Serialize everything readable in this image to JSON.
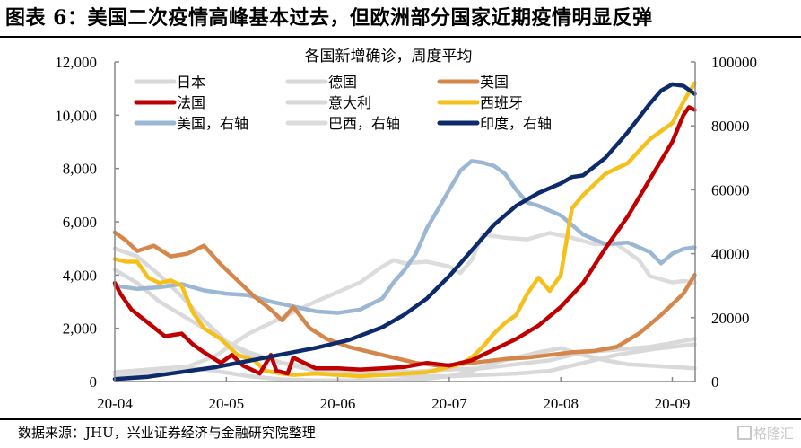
{
  "header": {
    "title": "图表 6：美国二次疫情高峰基本过去，但欧洲部分国家近期疫情明显反弹"
  },
  "footer": {
    "source": "数据来源：JHU，兴业证券经济与金融研究院整理",
    "watermark": "格隆汇"
  },
  "chart_data": {
    "type": "line",
    "title": "各国新增确诊，周度平均",
    "xlabel": "",
    "ylabel": "",
    "x_unit": "months since 2020-04-01",
    "x_ticks": [
      "20-04",
      "20-05",
      "20-06",
      "20-07",
      "20-08",
      "20-09"
    ],
    "xlim": [
      0,
      5.2
    ],
    "ylim_left": [
      0,
      12000
    ],
    "ylim_right": [
      0,
      100000
    ],
    "y_ticks_left": [
      "0",
      "2,000",
      "4,000",
      "6,000",
      "8,000",
      "10,000",
      "12,000"
    ],
    "y_ticks_right": [
      "0",
      "20000",
      "40000",
      "60000",
      "80000",
      "100000"
    ],
    "grid": false,
    "legend_position": "top-left",
    "series": [
      {
        "name": "日本",
        "axis": "left",
        "color": "#d9d9d9",
        "x": [
          0,
          0.3,
          0.6,
          0.9,
          1.2,
          1.5,
          1.8,
          2.1,
          2.4,
          2.7,
          3.0,
          3.2,
          3.4,
          3.6,
          3.8,
          4.0,
          4.2,
          4.4,
          4.6,
          4.8,
          5.0,
          5.2
        ],
        "values": [
          350,
          450,
          550,
          400,
          200,
          80,
          40,
          40,
          50,
          60,
          200,
          400,
          700,
          900,
          1100,
          1250,
          1000,
          800,
          650,
          600,
          550,
          500
        ]
      },
      {
        "name": "德国",
        "axis": "left",
        "color": "#d9d9d9",
        "x": [
          0,
          0.2,
          0.4,
          0.6,
          0.8,
          1.0,
          1.2,
          1.5,
          1.8,
          2.1,
          2.4,
          2.7,
          3.0,
          3.3,
          3.6,
          3.9,
          4.2,
          4.5,
          4.8,
          5.0,
          5.2
        ],
        "values": [
          5000,
          4700,
          4000,
          3200,
          2300,
          1500,
          1000,
          700,
          500,
          400,
          350,
          380,
          450,
          500,
          650,
          800,
          1100,
          1200,
          1300,
          1450,
          1600
        ]
      },
      {
        "name": "英国",
        "axis": "left",
        "color": "#d5864a",
        "x": [
          0,
          0.1,
          0.2,
          0.35,
          0.5,
          0.65,
          0.8,
          0.95,
          1.1,
          1.25,
          1.4,
          1.5,
          1.6,
          1.75,
          1.9,
          2.1,
          2.3,
          2.5,
          2.7,
          2.9,
          3.1,
          3.3,
          3.5,
          3.7,
          3.9,
          4.1,
          4.3,
          4.5,
          4.7,
          4.9,
          5.1,
          5.2
        ],
        "values": [
          5600,
          5300,
          4900,
          5100,
          4700,
          4800,
          5100,
          4400,
          3800,
          3200,
          2700,
          2300,
          2800,
          2000,
          1600,
          1300,
          1100,
          900,
          700,
          600,
          650,
          750,
          850,
          900,
          1000,
          1100,
          1150,
          1300,
          1800,
          2500,
          3300,
          4000
        ]
      },
      {
        "name": "法国",
        "axis": "left",
        "color": "#c00000",
        "x": [
          0,
          0.05,
          0.15,
          0.3,
          0.45,
          0.6,
          0.7,
          0.8,
          0.95,
          1.05,
          1.15,
          1.25,
          1.3,
          1.4,
          1.45,
          1.55,
          1.6,
          1.8,
          2.0,
          2.2,
          2.4,
          2.6,
          2.8,
          3.0,
          3.2,
          3.3,
          3.4,
          3.6,
          3.8,
          4.0,
          4.2,
          4.4,
          4.6,
          4.8,
          5.0,
          5.1,
          5.15,
          5.2
        ],
        "values": [
          3700,
          3300,
          2700,
          2200,
          1700,
          1800,
          1400,
          1100,
          700,
          1000,
          600,
          400,
          300,
          1000,
          400,
          300,
          900,
          500,
          500,
          450,
          500,
          550,
          700,
          600,
          800,
          1000,
          1200,
          1600,
          2100,
          2800,
          3700,
          5000,
          6200,
          7600,
          9000,
          10000,
          10300,
          10200
        ]
      },
      {
        "name": "意大利",
        "axis": "left",
        "color": "#d9d9d9",
        "x": [
          0,
          0.2,
          0.4,
          0.6,
          0.8,
          1.0,
          1.2,
          1.5,
          1.8,
          2.1,
          2.4,
          2.7,
          3.0,
          3.3,
          3.6,
          3.9,
          4.2,
          4.5,
          4.8,
          5.0,
          5.2
        ],
        "values": [
          4200,
          3700,
          3000,
          2500,
          2000,
          1500,
          1100,
          700,
          400,
          300,
          250,
          200,
          200,
          250,
          300,
          400,
          700,
          1000,
          1200,
          1300,
          1400
        ]
      },
      {
        "name": "西班牙",
        "axis": "left",
        "color": "#f5c01a",
        "x": [
          0,
          0.1,
          0.2,
          0.3,
          0.4,
          0.5,
          0.6,
          0.7,
          0.8,
          0.95,
          1.1,
          1.25,
          1.35,
          1.5,
          1.6,
          1.8,
          2.0,
          2.2,
          2.4,
          2.6,
          2.8,
          2.95,
          3.1,
          3.2,
          3.3,
          3.4,
          3.5,
          3.6,
          3.7,
          3.8,
          3.9,
          4.0,
          4.1,
          4.2,
          4.4,
          4.6,
          4.8,
          5.0,
          5.1,
          5.2
        ],
        "values": [
          4600,
          4500,
          4500,
          3900,
          3700,
          3800,
          3600,
          2600,
          2000,
          1600,
          1000,
          800,
          400,
          300,
          250,
          300,
          250,
          200,
          250,
          300,
          350,
          500,
          650,
          900,
          1300,
          1800,
          2200,
          2500,
          3300,
          3900,
          3400,
          4000,
          6500,
          7000,
          7800,
          8200,
          9100,
          9700,
          10500,
          11200
        ]
      },
      {
        "name": "美国，右轴",
        "axis": "right",
        "color": "#9bb7d4",
        "x": [
          0,
          0.2,
          0.4,
          0.6,
          0.8,
          1.0,
          1.2,
          1.4,
          1.6,
          1.8,
          2.0,
          2.2,
          2.4,
          2.5,
          2.6,
          2.7,
          2.8,
          2.9,
          3.0,
          3.1,
          3.2,
          3.3,
          3.4,
          3.5,
          3.6,
          3.7,
          3.8,
          4.0,
          4.2,
          4.4,
          4.6,
          4.8,
          4.9,
          5.0,
          5.1,
          5.2
        ],
        "values": [
          30000,
          29000,
          29500,
          30500,
          28500,
          27500,
          27000,
          25000,
          23500,
          22000,
          21500,
          22500,
          26000,
          31000,
          35000,
          40000,
          48000,
          54000,
          60000,
          66000,
          69000,
          68500,
          67500,
          65000,
          60000,
          56000,
          55000,
          52000,
          46000,
          43000,
          43500,
          40500,
          37000,
          40000,
          41500,
          42000
        ]
      },
      {
        "name": "巴西，右轴",
        "axis": "right",
        "color": "#dcdcdc",
        "x": [
          0,
          0.3,
          0.6,
          0.9,
          1.2,
          1.5,
          1.8,
          2.0,
          2.2,
          2.4,
          2.5,
          2.6,
          2.8,
          3.0,
          3.1,
          3.2,
          3.3,
          3.5,
          3.7,
          3.9,
          4.1,
          4.3,
          4.5,
          4.7,
          4.8,
          4.9,
          5.0,
          5.1,
          5.2
        ],
        "values": [
          2000,
          2500,
          4000,
          8000,
          15000,
          20000,
          25000,
          28000,
          31000,
          36000,
          38000,
          37000,
          37500,
          36000,
          34000,
          38000,
          46000,
          45000,
          44500,
          46500,
          45000,
          43000,
          43000,
          38000,
          33000,
          32000,
          31000,
          31500,
          31000
        ]
      },
      {
        "name": "印度，右轴",
        "axis": "right",
        "color": "#0d2a6b",
        "x": [
          0,
          0.3,
          0.6,
          0.9,
          1.2,
          1.5,
          1.8,
          2.1,
          2.4,
          2.6,
          2.8,
          3.0,
          3.2,
          3.4,
          3.6,
          3.8,
          4.0,
          4.1,
          4.2,
          4.4,
          4.6,
          4.8,
          4.9,
          5.0,
          5.1,
          5.2
        ],
        "values": [
          800,
          1500,
          3000,
          4500,
          6500,
          8500,
          10500,
          13000,
          17000,
          21000,
          26000,
          33000,
          41000,
          49000,
          55000,
          59000,
          62000,
          64000,
          64500,
          70000,
          78000,
          87000,
          91000,
          93000,
          92500,
          90000
        ]
      }
    ]
  }
}
